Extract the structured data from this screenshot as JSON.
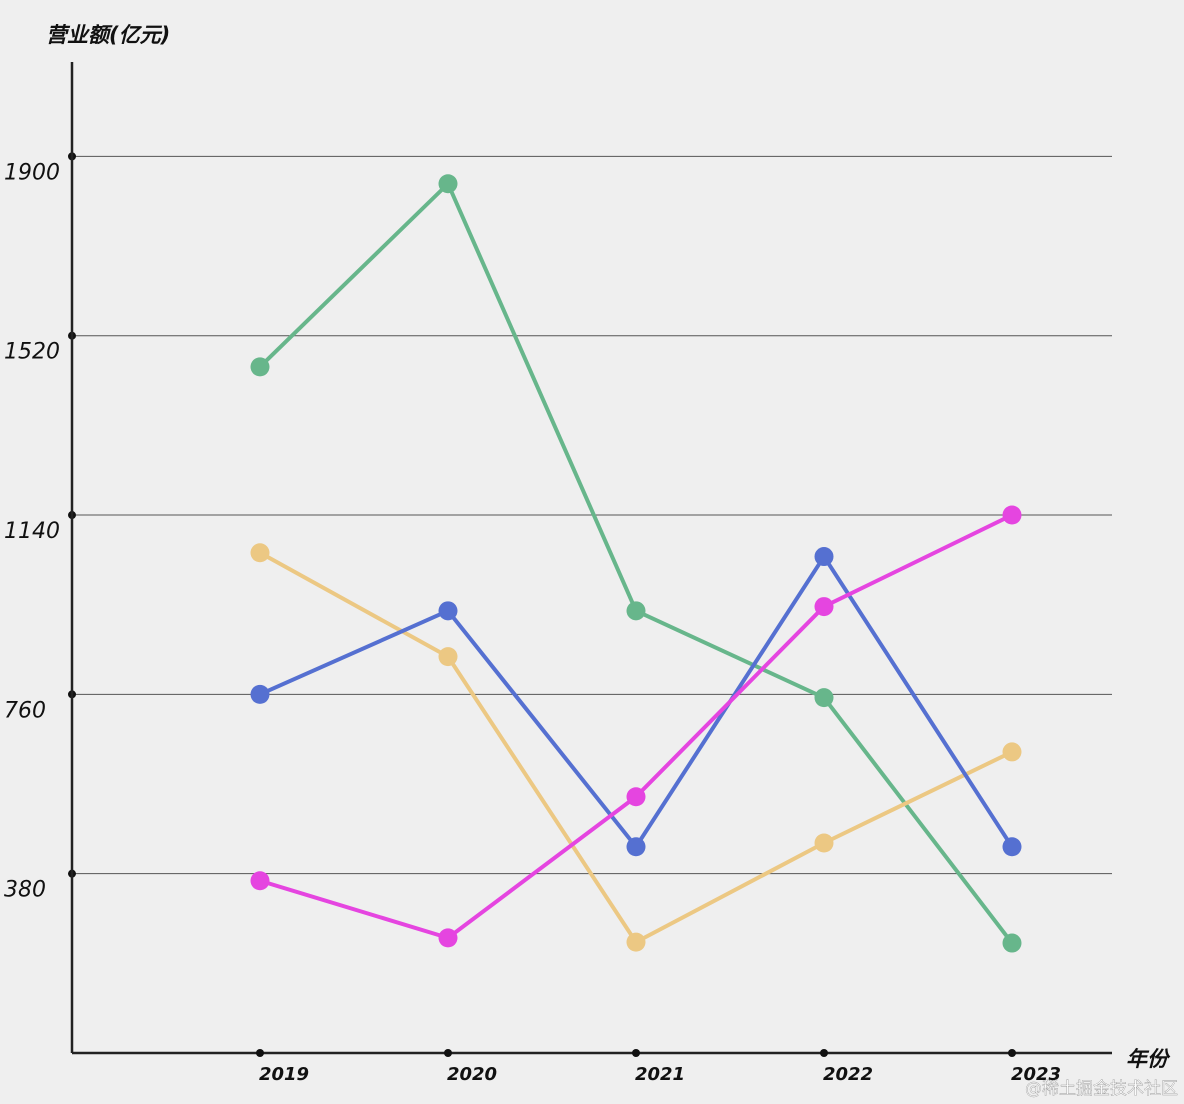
{
  "chart_data": {
    "type": "line",
    "y_label": "营业额(亿元)",
    "x_label": "年份",
    "categories": [
      "2019",
      "2020",
      "2021",
      "2022",
      "2023"
    ],
    "series": [
      {
        "color": "#67b68b",
        "values": [
          1454,
          1842,
          937,
          753,
          233
        ]
      },
      {
        "color": "#ecc883",
        "values": [
          1060,
          840,
          235,
          445,
          638
        ]
      },
      {
        "color": "#5570d1",
        "values": [
          760,
          937,
          437,
          1052,
          437
        ]
      },
      {
        "color": "#e545e0",
        "values": [
          365,
          244,
          543,
          946,
          1140
        ]
      }
    ],
    "ylim": [
      0,
      2100
    ],
    "yticks": [
      380,
      760,
      1140,
      1520,
      1900
    ],
    "grid": true,
    "watermark": "@稀土掘金技术社区"
  }
}
